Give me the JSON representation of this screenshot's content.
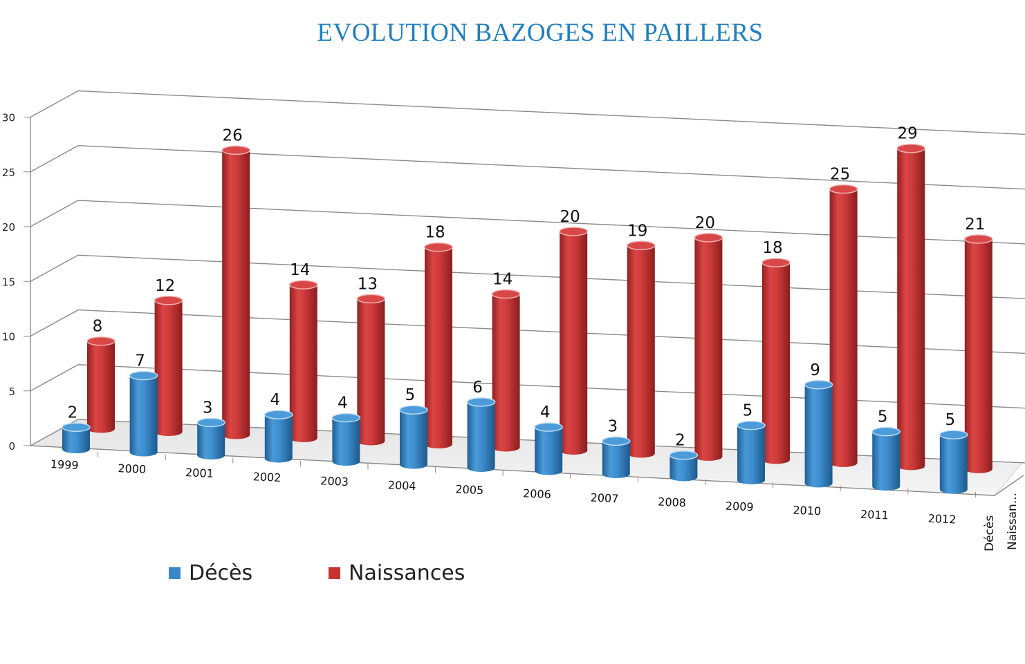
{
  "chart_data": {
    "type": "bar",
    "title": "EVOLUTION BAZOGES EN PAILLERS",
    "categories": [
      "1999",
      "2000",
      "2001",
      "2002",
      "2003",
      "2004",
      "2005",
      "2006",
      "2007",
      "2008",
      "2009",
      "2010",
      "2011",
      "2012"
    ],
    "series": [
      {
        "name": "Décès",
        "values": [
          2,
          7,
          3,
          4,
          4,
          5,
          6,
          4,
          3,
          2,
          5,
          9,
          5,
          5
        ],
        "color": "#3a87c8"
      },
      {
        "name": "Naissances",
        "values": [
          8,
          12,
          26,
          14,
          13,
          18,
          14,
          20,
          19,
          20,
          18,
          25,
          29,
          21
        ],
        "color": "#c73232"
      }
    ],
    "depth_axis_labels": [
      "Décès",
      "Naissan..."
    ],
    "yticks": [
      0,
      5,
      10,
      15,
      20,
      25,
      30
    ],
    "ylim": [
      0,
      30
    ],
    "grid": true,
    "legend_position": "bottom-left"
  }
}
